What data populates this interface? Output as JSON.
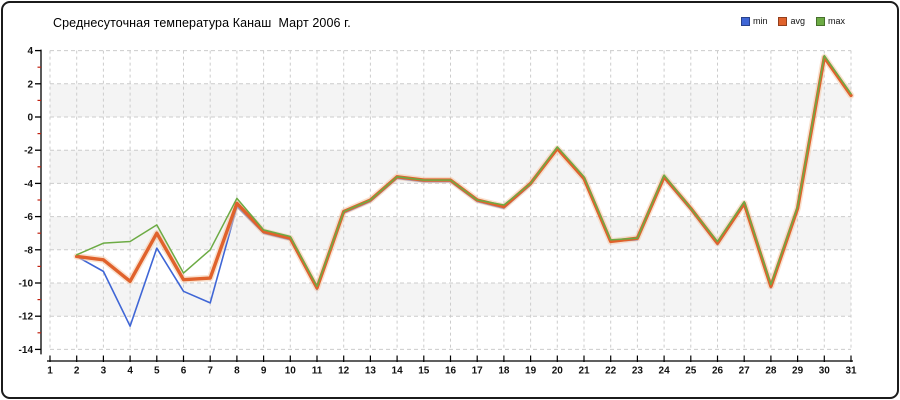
{
  "widget": {
    "title": "Среднесуточная температура Канаш  Март 2006 г.",
    "border_color": "#1b1b1b"
  },
  "chart_data": {
    "type": "line",
    "title": "Среднесуточная температура Канаш  Март 2006 г.",
    "xlabel": "",
    "ylabel": "",
    "xlim": [
      1,
      31
    ],
    "ylim": [
      -14,
      4
    ],
    "grid": true,
    "legend_position": "top-right",
    "x_ticks": [
      1,
      2,
      3,
      4,
      5,
      6,
      7,
      8,
      9,
      10,
      11,
      12,
      13,
      14,
      15,
      16,
      17,
      18,
      19,
      20,
      21,
      22,
      23,
      24,
      25,
      26,
      27,
      28,
      29,
      30,
      31
    ],
    "y_ticks": [
      4,
      2,
      0,
      -2,
      -4,
      -6,
      -8,
      -10,
      -12,
      -14
    ],
    "x": [
      2,
      3,
      4,
      5,
      6,
      7,
      8,
      9,
      10,
      11,
      12,
      13,
      14,
      15,
      16,
      17,
      18,
      19,
      20,
      21,
      22,
      23,
      24,
      25,
      26,
      27,
      28,
      29,
      30,
      31
    ],
    "series": [
      {
        "name": "min",
        "color": "#3f66d6",
        "width": 1.6,
        "values": [
          -8.4,
          -9.3,
          -12.6,
          -7.9,
          -10.5,
          -11.2,
          -5.4,
          -7.0,
          -7.4,
          -10.4,
          -5.8,
          -5.1,
          -3.7,
          -3.9,
          -3.9,
          -5.1,
          -5.5,
          -4.1,
          -1.9,
          -3.8,
          -7.5,
          -7.4,
          -3.7,
          -5.6,
          -7.7,
          -5.3,
          -10.3,
          -5.6,
          3.5,
          1.3
        ]
      },
      {
        "name": "avg",
        "color": "#e0622c",
        "width": 3.4,
        "halo": "#f4cbaa",
        "values": [
          -8.4,
          -8.6,
          -9.9,
          -7.0,
          -9.8,
          -9.7,
          -5.2,
          -6.9,
          -7.3,
          -10.3,
          -5.7,
          -5.0,
          -3.6,
          -3.8,
          -3.8,
          -5.0,
          -5.4,
          -4.0,
          -1.9,
          -3.7,
          -7.5,
          -7.3,
          -3.6,
          -5.5,
          -7.6,
          -5.2,
          -10.2,
          -5.5,
          3.6,
          1.3
        ]
      },
      {
        "name": "max",
        "color": "#6cab44",
        "width": 1.5,
        "values": [
          -8.3,
          -7.6,
          -7.5,
          -6.5,
          -9.4,
          -8.0,
          -4.9,
          -6.8,
          -7.2,
          -10.2,
          -5.7,
          -5.0,
          -3.6,
          -3.8,
          -3.8,
          -5.0,
          -5.3,
          -4.0,
          -1.8,
          -3.6,
          -7.4,
          -7.3,
          -3.5,
          -5.5,
          -7.5,
          -5.1,
          -10.1,
          -5.4,
          3.7,
          1.4
        ]
      }
    ],
    "band_colors": [
      "#ffffff",
      "#f4f4f4"
    ],
    "gridline_color": "#cccccc",
    "axis_color": "#000000",
    "minor_tick_color": "#c22211",
    "tick_label_color": "#111111"
  }
}
